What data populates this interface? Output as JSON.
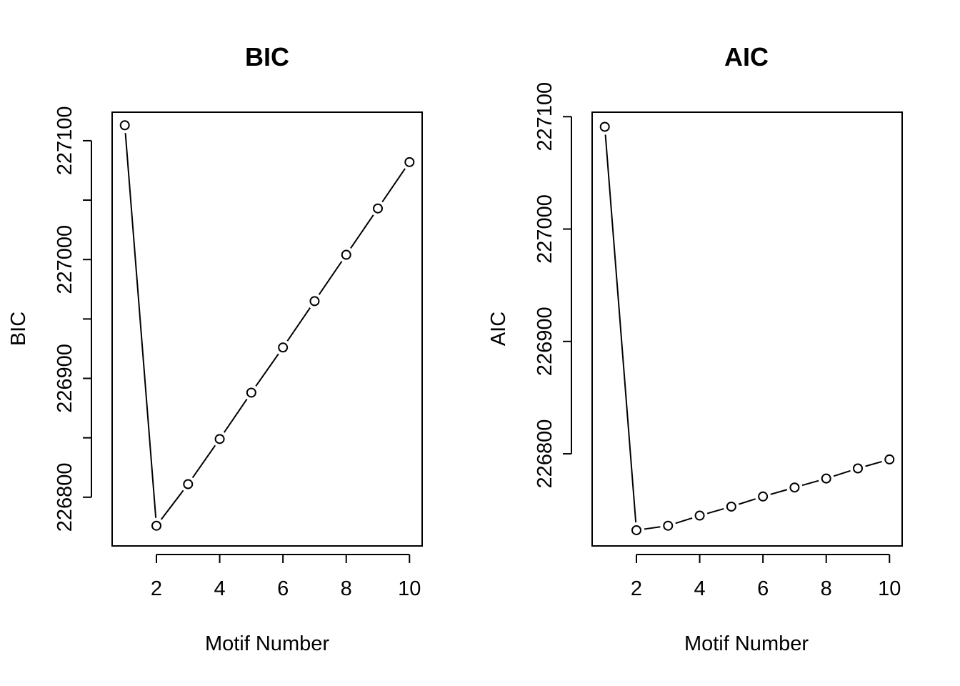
{
  "chart_data": [
    {
      "type": "line",
      "title": "BIC",
      "xlabel": "Motif Number",
      "ylabel": "BIC",
      "x": [
        1,
        2,
        3,
        4,
        5,
        6,
        7,
        8,
        9,
        10
      ],
      "series": [
        {
          "values": [
            227113,
            226776,
            226811,
            226849,
            226888,
            226926,
            226965,
            227004,
            227043,
            227082
          ]
        }
      ],
      "xlim": [
        0.6,
        10.4
      ],
      "ylim": [
        226759,
        227124
      ],
      "xticks": [
        2,
        4,
        6,
        8,
        10
      ],
      "yticks": [
        226800,
        226850,
        226900,
        226950,
        227000,
        227050,
        227100
      ],
      "ytick_labels": [
        "226800",
        "",
        "226900",
        "",
        "227000",
        "",
        "227100"
      ],
      "grid": false,
      "marker": "open-circle",
      "line_style": "solid-with-gaps"
    },
    {
      "type": "line",
      "title": "AIC",
      "xlabel": "Motif Number",
      "ylabel": "AIC",
      "x": [
        1,
        2,
        3,
        4,
        5,
        6,
        7,
        8,
        9,
        10
      ],
      "series": [
        {
          "values": [
            227091,
            226732,
            226736,
            226745,
            226753,
            226762,
            226770,
            226778,
            226787,
            226795
          ]
        }
      ],
      "xlim": [
        0.6,
        10.4
      ],
      "ylim": [
        226718,
        227104
      ],
      "xticks": [
        2,
        4,
        6,
        8,
        10
      ],
      "yticks": [
        226800,
        226900,
        227000,
        227100
      ],
      "ytick_labels": [
        "226800",
        "226900",
        "227000",
        "227100"
      ],
      "grid": false,
      "marker": "open-circle",
      "line_style": "solid-with-gaps"
    }
  ]
}
